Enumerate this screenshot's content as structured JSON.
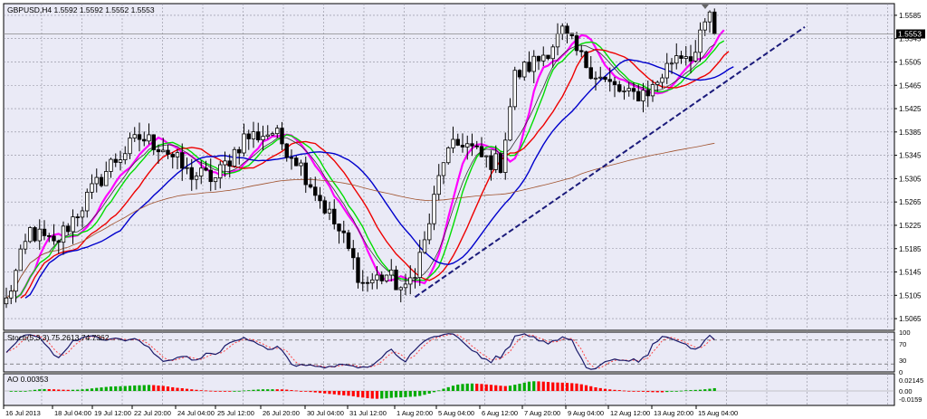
{
  "chart_data": [
    {
      "type": "candlestick",
      "title": "GBPUSD,H4  1.5592 1.5592 1.5552 1.5553",
      "price_label": "1.5553",
      "ylim": [
        1.5045,
        1.5605
      ],
      "y_ticks": [
        1.5065,
        1.5105,
        1.5145,
        1.5185,
        1.5225,
        1.5265,
        1.5305,
        1.5345,
        1.5385,
        1.5425,
        1.5465,
        1.5505,
        1.5545,
        1.5585
      ],
      "current_price": 1.5553,
      "candle_count": 150,
      "anchors": [
        {
          "i": 0,
          "close": 1.5095
        },
        {
          "i": 5,
          "close": 1.5215
        },
        {
          "i": 10,
          "close": 1.519
        },
        {
          "i": 16,
          "close": 1.526
        },
        {
          "i": 22,
          "close": 1.533
        },
        {
          "i": 28,
          "close": 1.5375
        },
        {
          "i": 33,
          "close": 1.536
        },
        {
          "i": 38,
          "close": 1.5315
        },
        {
          "i": 44,
          "close": 1.5305
        },
        {
          "i": 50,
          "close": 1.5375
        },
        {
          "i": 56,
          "close": 1.5385
        },
        {
          "i": 61,
          "close": 1.534
        },
        {
          "i": 66,
          "close": 1.527
        },
        {
          "i": 71,
          "close": 1.52
        },
        {
          "i": 75,
          "close": 1.5125
        },
        {
          "i": 80,
          "close": 1.514
        },
        {
          "i": 84,
          "close": 1.511
        },
        {
          "i": 88,
          "close": 1.5195
        },
        {
          "i": 92,
          "close": 1.534
        },
        {
          "i": 96,
          "close": 1.537
        },
        {
          "i": 100,
          "close": 1.534
        },
        {
          "i": 104,
          "close": 1.533
        },
        {
          "i": 107,
          "close": 1.548
        },
        {
          "i": 112,
          "close": 1.551
        },
        {
          "i": 117,
          "close": 1.5555
        },
        {
          "i": 121,
          "close": 1.551
        },
        {
          "i": 126,
          "close": 1.547
        },
        {
          "i": 131,
          "close": 1.5445
        },
        {
          "i": 136,
          "close": 1.546
        },
        {
          "i": 141,
          "close": 1.552
        },
        {
          "i": 145,
          "close": 1.552
        },
        {
          "i": 148,
          "close": 1.559
        },
        {
          "i": 149,
          "close": 1.5553
        }
      ],
      "moving_averages": [
        {
          "color": "#ff00ff",
          "period": 5
        },
        {
          "color": "#00dd00",
          "period": 8
        },
        {
          "color": "#ee0000",
          "period": 13
        },
        {
          "color": "#0000cc",
          "period": 21
        },
        {
          "color": "#333333",
          "period": 10
        },
        {
          "color": "#a0522d",
          "period": 120
        }
      ],
      "trendline": {
        "from": {
          "i": 86,
          "value": 1.5102
        },
        "to": {
          "i": 168,
          "value": 1.5565
        },
        "style": "dashed",
        "color": "#1a1a7a"
      }
    },
    {
      "type": "line",
      "title": "Stoch(5,3,3) 75.2613 74.7362",
      "ylim": [
        0,
        100
      ],
      "y_ticks": [
        100,
        70,
        30,
        0
      ],
      "levels": [
        80,
        20
      ]
    },
    {
      "type": "bar",
      "title": "AO 0.00353",
      "y_ticks": [
        "0.02145",
        "0.00",
        "-0.0159"
      ],
      "colors": {
        "up": "#00aa00",
        "down": "#ff0000"
      }
    }
  ],
  "x_labels": [
    "16 Jul 2013",
    "18 Jul 04:00",
    "19 Jul 12:00",
    "22 Jul 20:00",
    "24 Jul 04:00",
    "25 Jul 12:00",
    "26 Jul 20:00",
    "30 Jul 04:00",
    "31 Jul 12:00",
    "1 Aug 20:00",
    "5 Aug 04:00",
    "6 Aug 12:00",
    "7 Aug 20:00",
    "9 Aug 04:00",
    "12 Aug 12:00",
    "13 Aug 20:00",
    "15 Aug 04:00"
  ],
  "colors": {
    "background": "#ffffff",
    "plot_bg": "#eaeaf6",
    "grid": "#8c8c9a",
    "candle": "#000000",
    "stoch_main": "#1a1a6a",
    "stoch_signal": "#ff4444",
    "level_line": "#444444"
  }
}
